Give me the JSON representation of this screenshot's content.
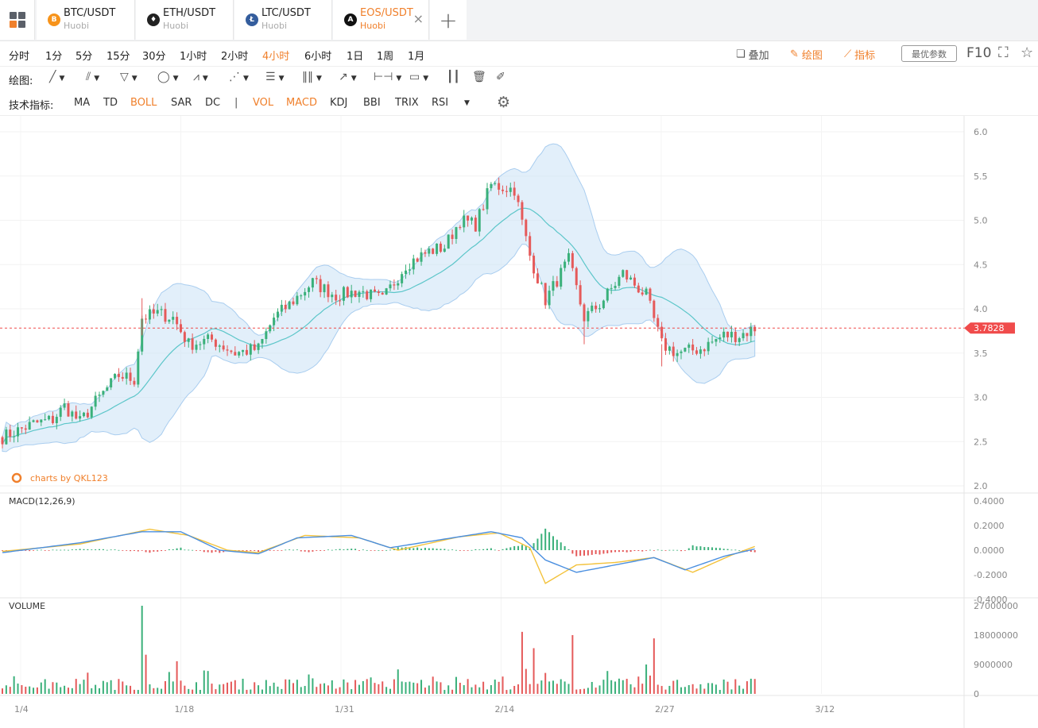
{
  "tabs": [
    {
      "pair": "BTC/USDT",
      "exchange": "Huobi",
      "icon": "btc-coin-icon",
      "color": "#f7931a",
      "glyph": "B",
      "active": false
    },
    {
      "pair": "ETH/USDT",
      "exchange": "Huobi",
      "icon": "eth-coin-icon",
      "color": "#222222",
      "glyph": "♦",
      "active": false
    },
    {
      "pair": "LTC/USDT",
      "exchange": "Huobi",
      "icon": "ltc-coin-icon",
      "color": "#345d9d",
      "glyph": "Ł",
      "active": false
    },
    {
      "pair": "EOS/USDT",
      "exchange": "Huobi",
      "icon": "eos-coin-icon",
      "color": "#111111",
      "glyph": "A",
      "active": true
    }
  ],
  "periods": [
    "分时",
    "1分",
    "5分",
    "15分",
    "30分",
    "1小时",
    "2小时",
    "4小时",
    "6小时",
    "1日",
    "1周",
    "1月"
  ],
  "active_period": "4小时",
  "toolbar_right": {
    "overlay": "叠加",
    "draw": "绘图",
    "indicator": "指标",
    "best_params": "最优参数",
    "f10": "F10"
  },
  "drawing": {
    "label": "绘图:"
  },
  "indicators": {
    "label": "技术指标:",
    "main": [
      {
        "name": "MA",
        "on": false
      },
      {
        "name": "TD",
        "on": false
      },
      {
        "name": "BOLL",
        "on": true
      },
      {
        "name": "SAR",
        "on": false
      },
      {
        "name": "DC",
        "on": false
      }
    ],
    "separator": "|",
    "sub": [
      {
        "name": "VOL",
        "on": true
      },
      {
        "name": "MACD",
        "on": true
      },
      {
        "name": "KDJ",
        "on": false
      },
      {
        "name": "BBI",
        "on": false
      },
      {
        "name": "TRIX",
        "on": false
      },
      {
        "name": "RSI",
        "on": false
      }
    ]
  },
  "colors": {
    "accent": "#f0802c",
    "up": "#3ab07a",
    "down": "#e55a5a",
    "boll_band": "#cfe4f7",
    "boll_mid": "#5cc6c9",
    "macd_dif": "#4a8fe0",
    "macd_dea": "#f3c23b",
    "price_tag": "#f04b4b"
  },
  "watermark": "charts by QKL123",
  "macd_label": "MACD(12,26,9)",
  "volume_label": "VOLUME",
  "chart_data": {
    "type": "candlestick",
    "pair": "EOS/USDT",
    "interval": "4小时",
    "last_price": "3.7828",
    "price_axis": [
      "6.0",
      "5.5",
      "5.0",
      "4.5",
      "4.0",
      "3.5",
      "3.0",
      "2.5",
      "2.0"
    ],
    "price_range": [
      2.0,
      6.0
    ],
    "macd_axis": [
      "0.4000",
      "0.2000",
      "0.0000",
      "-0.2000",
      "-0.4000"
    ],
    "macd_range": [
      -0.4,
      0.4
    ],
    "volume_axis": [
      "27000000",
      "18000000",
      "9000000",
      "0"
    ],
    "volume_range": [
      0,
      27000000
    ],
    "x_ticks": [
      "1/4",
      "1/18",
      "1/31",
      "2/14",
      "2/27",
      "3/12"
    ],
    "close_path": [
      [
        0,
        2.55
      ],
      [
        8,
        2.7
      ],
      [
        13,
        2.75
      ],
      [
        16,
        2.9
      ],
      [
        20,
        2.72
      ],
      [
        24,
        2.95
      ],
      [
        30,
        3.25
      ],
      [
        34,
        3.2
      ],
      [
        36,
        3.9
      ],
      [
        40,
        3.95
      ],
      [
        44,
        3.9
      ],
      [
        48,
        3.6
      ],
      [
        54,
        3.65
      ],
      [
        60,
        3.5
      ],
      [
        66,
        3.55
      ],
      [
        70,
        3.9
      ],
      [
        74,
        4.05
      ],
      [
        80,
        4.3
      ],
      [
        86,
        4.15
      ],
      [
        92,
        4.2
      ],
      [
        98,
        4.1
      ],
      [
        104,
        4.5
      ],
      [
        110,
        4.65
      ],
      [
        114,
        4.7
      ],
      [
        118,
        5.0
      ],
      [
        122,
        4.95
      ],
      [
        126,
        5.4
      ],
      [
        132,
        5.35
      ],
      [
        136,
        4.6
      ],
      [
        140,
        4.1
      ],
      [
        146,
        4.55
      ],
      [
        150,
        3.9
      ],
      [
        154,
        4.05
      ],
      [
        160,
        4.4
      ],
      [
        166,
        4.15
      ],
      [
        170,
        3.6
      ],
      [
        174,
        3.5
      ],
      [
        180,
        3.55
      ],
      [
        186,
        3.7
      ],
      [
        190,
        3.7
      ],
      [
        194,
        3.78
      ]
    ],
    "macd_dif": [
      [
        0,
        -0.02
      ],
      [
        20,
        0.06
      ],
      [
        36,
        0.15
      ],
      [
        46,
        0.15
      ],
      [
        56,
        0.0
      ],
      [
        66,
        -0.03
      ],
      [
        76,
        0.1
      ],
      [
        90,
        0.12
      ],
      [
        100,
        0.02
      ],
      [
        116,
        0.1
      ],
      [
        126,
        0.15
      ],
      [
        134,
        0.1
      ],
      [
        140,
        -0.08
      ],
      [
        148,
        -0.18
      ],
      [
        158,
        -0.12
      ],
      [
        168,
        -0.06
      ],
      [
        176,
        -0.16
      ],
      [
        186,
        -0.05
      ],
      [
        194,
        0.01
      ]
    ],
    "macd_dea": [
      [
        0,
        -0.01
      ],
      [
        20,
        0.05
      ],
      [
        38,
        0.17
      ],
      [
        48,
        0.12
      ],
      [
        58,
        0.0
      ],
      [
        66,
        -0.02
      ],
      [
        78,
        0.12
      ],
      [
        92,
        0.1
      ],
      [
        102,
        0.0
      ],
      [
        118,
        0.11
      ],
      [
        128,
        0.14
      ],
      [
        136,
        0.02
      ],
      [
        140,
        -0.27
      ],
      [
        148,
        -0.12
      ],
      [
        158,
        -0.1
      ],
      [
        168,
        -0.06
      ],
      [
        178,
        -0.18
      ],
      [
        188,
        -0.04
      ],
      [
        194,
        0.03
      ]
    ],
    "volume_spikes": [
      [
        36,
        27000000
      ],
      [
        37,
        12000000
      ],
      [
        45,
        10000000
      ],
      [
        134,
        19000000
      ],
      [
        137,
        14000000
      ],
      [
        147,
        18000000
      ],
      [
        168,
        17000000
      ],
      [
        166,
        9000000
      ]
    ]
  }
}
